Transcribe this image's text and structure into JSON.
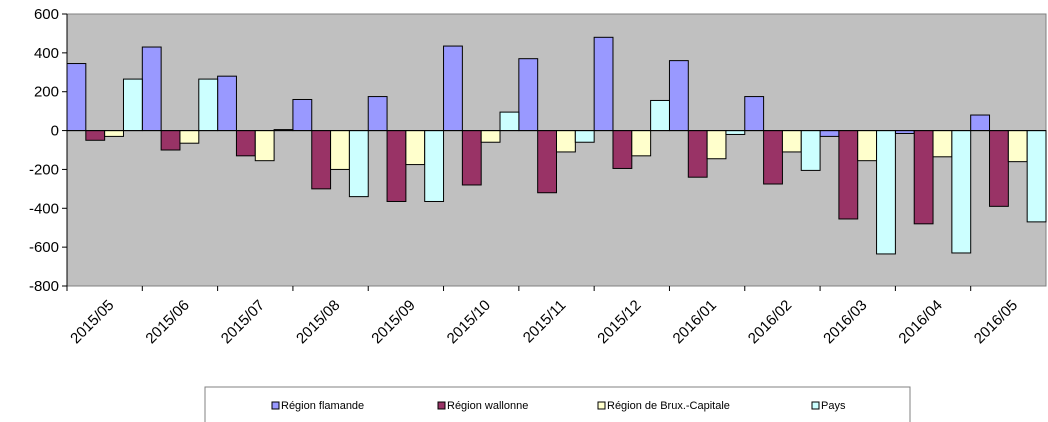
{
  "chart_data": {
    "type": "bar",
    "categories": [
      "2015/05",
      "2015/06",
      "2015/07",
      "2015/08",
      "2015/09",
      "2015/10",
      "2015/11",
      "2015/12",
      "2016/01",
      "2016/02",
      "2016/03",
      "2016/04",
      "2016/05"
    ],
    "ylim": [
      -800,
      600
    ],
    "yticks": [
      600,
      400,
      200,
      0,
      -200,
      -400,
      -600,
      -800
    ],
    "grid": false,
    "legend_position": "bottom",
    "plot_background": "#c0c0c0",
    "series": [
      {
        "name": "Région flamande",
        "color": "#9999ff",
        "values": [
          345,
          430,
          280,
          160,
          175,
          435,
          370,
          480,
          360,
          175,
          -30,
          -15,
          80
        ]
      },
      {
        "name": "Région wallonne",
        "color": "#993366",
        "values": [
          -50,
          -100,
          -130,
          -300,
          -365,
          -280,
          -320,
          -195,
          -240,
          -275,
          -455,
          -480,
          -390
        ]
      },
      {
        "name": "Région de Brux.-Capitale",
        "color": "#ffffcc",
        "values": [
          -30,
          -65,
          -155,
          -200,
          -175,
          -60,
          -110,
          -130,
          -145,
          -110,
          -155,
          -135,
          -160
        ]
      },
      {
        "name": "Pays",
        "color": "#ccffff",
        "values": [
          265,
          265,
          5,
          -340,
          -365,
          95,
          -60,
          155,
          -20,
          -205,
          -635,
          -630,
          -470
        ]
      }
    ]
  }
}
